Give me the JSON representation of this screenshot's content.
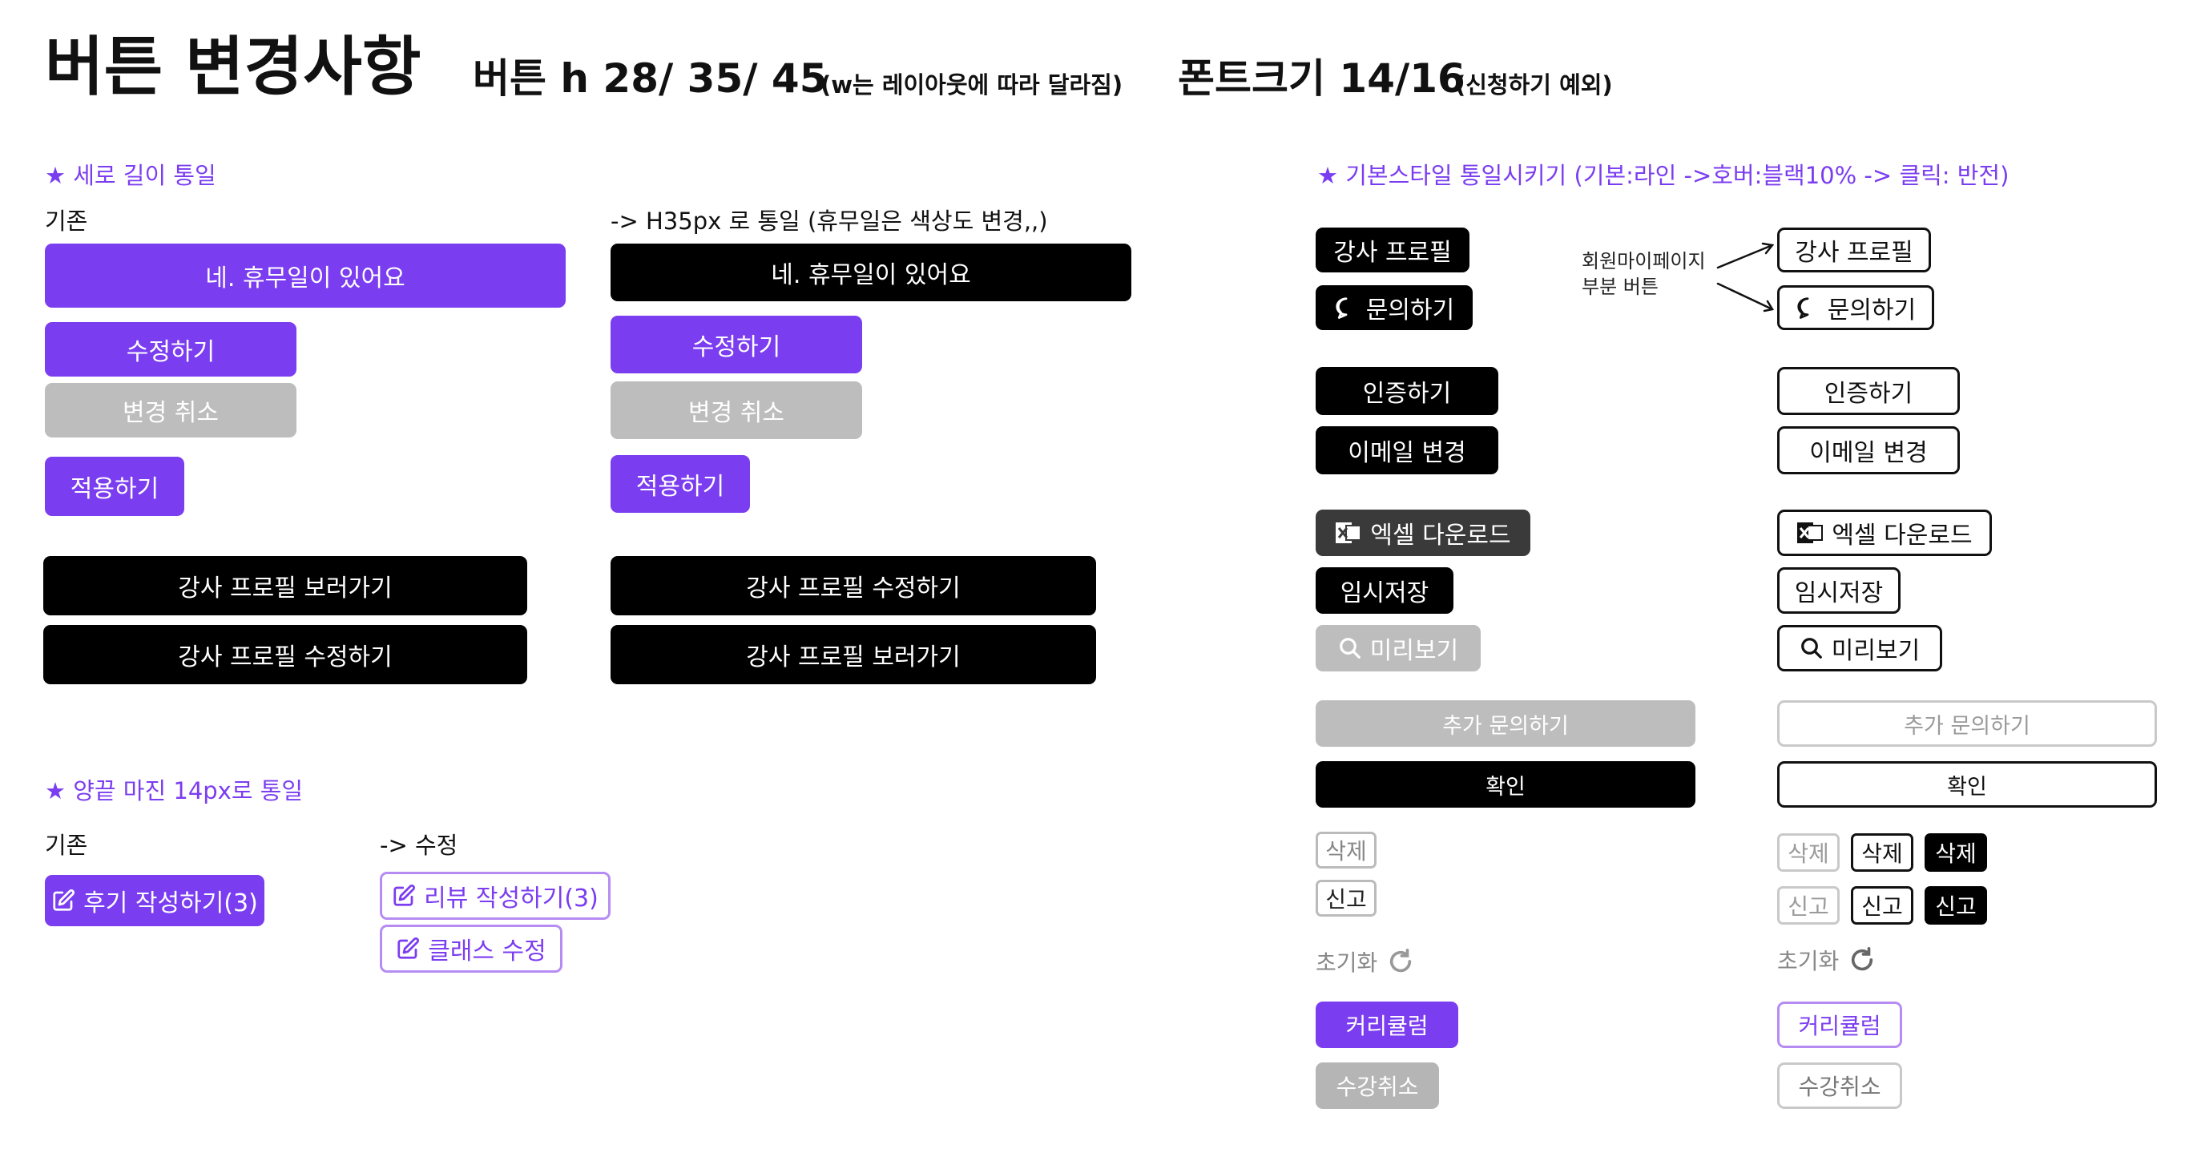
{
  "header": {
    "title": "버튼 변경사항",
    "height_spec": "버튼 h 28/ 35/ 45",
    "height_note": "(w는 레이아웃에 따라 달라짐)",
    "font_spec": "폰트크기 14/16",
    "font_note": "(신청하기 예외)"
  },
  "vertical_section": {
    "title": "★ 세로 길이 통일",
    "before_label": "기존",
    "after_label": "-> H35px 로 통일 (휴무일은 색상도 변경,,)",
    "before": {
      "holiday": "네. 휴무일이 있어요",
      "edit": "수정하기",
      "cancel": "변경 취소",
      "apply": "적용하기",
      "view_profile": "강사 프로필 보러가기",
      "edit_profile": "강사 프로필 수정하기"
    },
    "after": {
      "holiday": "네. 휴무일이 있어요",
      "edit": "수정하기",
      "cancel": "변경 취소",
      "apply": "적용하기",
      "edit_profile": "강사 프로필 수정하기",
      "view_profile": "강사 프로필 보러가기"
    }
  },
  "margin_section": {
    "title": "★ 양끝 마진 14px로 통일",
    "before_label": "기존",
    "after_label": "-> 수정",
    "before_review": "후기 작성하기(3)",
    "after_review": "리뷰 작성하기(3)",
    "after_class_edit": "클래스 수정"
  },
  "style_section": {
    "title": "★ 기본스타일 통일시키기 (기본:라인 ->호버:블랙10% -> 클릭: 반전)",
    "member_note_line1": "회원마이페이지",
    "member_note_line2": "부분 버튼",
    "left": {
      "profile": "강사 프로필",
      "inquiry": "문의하기",
      "verify": "인증하기",
      "email": "이메일 변경",
      "excel": "엑셀 다운로드",
      "temp_save": "임시저장",
      "preview": "미리보기",
      "add_inquiry": "추가 문의하기",
      "confirm": "확인",
      "delete": "삭제",
      "report": "신고",
      "reset": "초기화",
      "curriculum": "커리큘럼",
      "cancel_course": "수강취소"
    },
    "right": {
      "profile": "강사 프로필",
      "inquiry": "문의하기",
      "verify": "인증하기",
      "email": "이메일 변경",
      "excel": "엑셀 다운로드",
      "temp_save": "임시저장",
      "preview": "미리보기",
      "add_inquiry": "추가 문의하기",
      "confirm": "확인",
      "delete_1": "삭제",
      "delete_2": "삭제",
      "delete_3": "삭제",
      "report_1": "신고",
      "report_2": "신고",
      "report_3": "신고",
      "reset": "초기화",
      "curriculum": "커리큘럼",
      "cancel_course": "수강취소"
    }
  },
  "colors": {
    "accent": "#7b3df0",
    "black": "#000000",
    "gray": "#bdbdbd"
  },
  "icons": [
    "chat-bubble-icon",
    "excel-icon",
    "search-icon",
    "edit-icon",
    "refresh-icon",
    "arrow-icon"
  ]
}
